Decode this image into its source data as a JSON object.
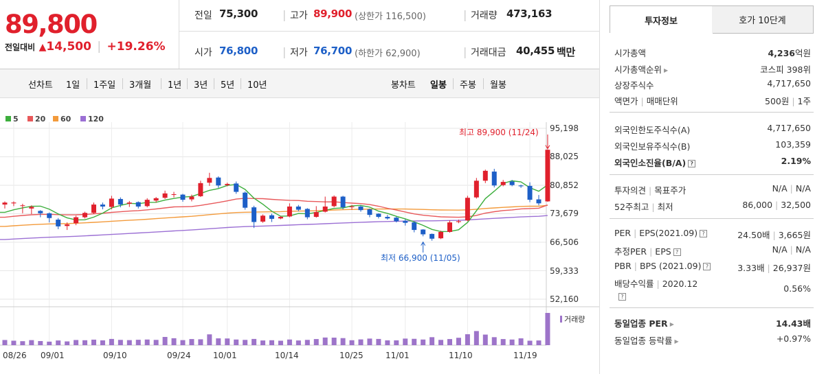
{
  "price": {
    "current": "89,800",
    "change_label": "전일대비",
    "change_value": "14,500",
    "change_pct": "+19.26%"
  },
  "summary": {
    "prev_close_label": "전일",
    "prev_close": "75,300",
    "high_label": "고가",
    "high": "89,900",
    "upper_limit_label": "(상한가 116,500)",
    "volume_label": "거래량",
    "volume": "473,163",
    "open_label": "시가",
    "open": "76,800",
    "low_label": "저가",
    "low": "76,700",
    "lower_limit_label": "(하한가 62,900)",
    "amount_label": "거래대금",
    "amount": "40,455",
    "amount_unit": "백만"
  },
  "toolbar": {
    "line_chart_label": "선차트",
    "periods": [
      "1일",
      "1주일",
      "3개월",
      "1년",
      "3년",
      "5년",
      "10년"
    ],
    "candle_chart_label": "봉차트",
    "candle_periods": [
      "일봉",
      "주봉",
      "월봉"
    ]
  },
  "legend": [
    {
      "label": "5",
      "color": "#3cae3c"
    },
    {
      "label": "20",
      "color": "#e8585a"
    },
    {
      "label": "60",
      "color": "#f39a3a"
    },
    {
      "label": "120",
      "color": "#9b6fd4"
    }
  ],
  "colors": {
    "up": "#e0202c",
    "down": "#1d5fc7",
    "volume": "#9d74c9"
  },
  "chart_data": {
    "type": "candlestick",
    "y_ticks": [
      "95,198",
      "88,025",
      "80,852",
      "73,679",
      "66,506",
      "59,333",
      "52,160"
    ],
    "ylim": [
      52160,
      95198
    ],
    "x_labels": [
      "08/26",
      "09/01",
      "09/10",
      "09/24",
      "10/01",
      "10/14",
      "10/25",
      "11/01",
      "11/10",
      "11/19"
    ],
    "x_label_index": [
      1,
      5,
      12,
      20,
      25,
      32,
      39,
      45,
      52,
      59
    ],
    "annotation_high": "최고 89,900 (11/24)",
    "annotation_low": "최저 66,900 (11/05)",
    "volume_label": "거래량",
    "candles": [
      [
        76000,
        76500,
        75000,
        76800
      ],
      [
        76300,
        76500,
        75600,
        76800
      ],
      [
        75800,
        75800,
        73800,
        76200
      ],
      [
        75000,
        75400,
        73600,
        75800
      ],
      [
        74400,
        73800,
        72800,
        74600
      ],
      [
        73800,
        72600,
        71500,
        74000
      ],
      [
        72200,
        70500,
        69800,
        72600
      ],
      [
        70600,
        71000,
        69600,
        71500
      ],
      [
        71300,
        72800,
        70800,
        73200
      ],
      [
        72800,
        73900,
        72500,
        74200
      ],
      [
        73900,
        76000,
        73600,
        76500
      ],
      [
        76000,
        75500,
        74800,
        76500
      ],
      [
        75400,
        77500,
        74800,
        78200
      ],
      [
        77400,
        76000,
        75300,
        77800
      ],
      [
        76200,
        76500,
        75400,
        76900
      ],
      [
        76600,
        75500,
        75000,
        76800
      ],
      [
        75600,
        77200,
        75300,
        77600
      ],
      [
        77000,
        77600,
        76500,
        77900
      ],
      [
        77700,
        78800,
        77400,
        79500
      ],
      [
        78600,
        78600,
        77800,
        79200
      ],
      [
        78500,
        77200,
        76700,
        78700
      ],
      [
        77300,
        78000,
        76800,
        78500
      ],
      [
        78100,
        81400,
        77900,
        82000
      ],
      [
        81500,
        82700,
        80700,
        84000
      ],
      [
        82800,
        80800,
        80200,
        83100
      ],
      [
        80900,
        81200,
        80600,
        81500
      ],
      [
        81300,
        79200,
        78700,
        81800
      ],
      [
        79000,
        75200,
        74700,
        79300
      ],
      [
        75300,
        71600,
        70100,
        75700
      ],
      [
        71700,
        73200,
        71400,
        73500
      ],
      [
        73300,
        72400,
        71600,
        73700
      ],
      [
        72500,
        72900,
        72300,
        73100
      ],
      [
        73000,
        75500,
        72800,
        76300
      ],
      [
        75500,
        74700,
        74300,
        75900
      ],
      [
        74900,
        72800,
        72300,
        75100
      ],
      [
        72900,
        74100,
        72700,
        75600
      ],
      [
        74200,
        75500,
        74000,
        78000
      ],
      [
        75600,
        78000,
        75300,
        78300
      ],
      [
        78000,
        75300,
        74800,
        78200
      ],
      [
        75400,
        75500,
        74700,
        75900
      ],
      [
        75500,
        74600,
        74200,
        75800
      ],
      [
        74800,
        73400,
        72800,
        75000
      ],
      [
        73700,
        72900,
        72500,
        73800
      ],
      [
        72900,
        72500,
        72200,
        73400
      ],
      [
        72700,
        71800,
        71500,
        73000
      ],
      [
        71900,
        71400,
        70700,
        72300
      ],
      [
        71500,
        69600,
        69000,
        71700
      ],
      [
        69700,
        68500,
        68000,
        69800
      ],
      [
        68600,
        67400,
        66900,
        68700
      ],
      [
        67500,
        69100,
        67300,
        69400
      ],
      [
        69100,
        71500,
        68900,
        72000
      ],
      [
        71600,
        71800,
        71300,
        72200
      ],
      [
        72000,
        77700,
        71800,
        78200
      ],
      [
        77800,
        82000,
        77500,
        82700
      ],
      [
        82000,
        84500,
        81400,
        84800
      ],
      [
        84300,
        80800,
        80300,
        85000
      ],
      [
        80900,
        81700,
        80600,
        82200
      ],
      [
        81800,
        80900,
        80600,
        82200
      ],
      [
        80800,
        80600,
        80200,
        81000
      ],
      [
        80700,
        77200,
        76600,
        81600
      ],
      [
        77300,
        76300,
        75800,
        78400
      ],
      [
        76800,
        89800,
        76700,
        89900
      ]
    ],
    "volumes": [
      44,
      38,
      34,
      43,
      35,
      30,
      40,
      32,
      44,
      42,
      47,
      41,
      53,
      45,
      43,
      46,
      48,
      45,
      70,
      59,
      43,
      52,
      50,
      92,
      58,
      57,
      48,
      45,
      53,
      40,
      42,
      38,
      48,
      40,
      45,
      52,
      65,
      64,
      60,
      42,
      49,
      56,
      53,
      41,
      41,
      56,
      54,
      48,
      68,
      45,
      52,
      63,
      93,
      120,
      90,
      68,
      52,
      48,
      58,
      38,
      40,
      274
    ]
  },
  "tabs": {
    "invest_info": "투자정보",
    "order_book": "호가 10단계"
  },
  "info": {
    "market_cap_label": "시가총액",
    "market_cap_value": "4,236",
    "market_cap_unit": "억원",
    "rank_label": "시가총액순위",
    "rank_value": "코스피 398위",
    "shares_label": "상장주식수",
    "shares_value": "4,717,650",
    "par_label": "액면가",
    "unit_label": "매매단위",
    "par_value": "500원",
    "unit_value": "1주",
    "foreign_limit_label": "외국인한도주식수(A)",
    "foreign_limit_value": "4,717,650",
    "foreign_hold_label": "외국인보유주식수(B)",
    "foreign_hold_value": "103,359",
    "foreign_ratio_label": "외국인소진율(B/A)",
    "foreign_ratio_value": "2.19%",
    "opinion_label": "투자의견",
    "target_label": "목표주가",
    "opinion_value": "N/A",
    "target_value": "N/A",
    "w52_high_label": "52주최고",
    "w52_low_label": "최저",
    "w52_high": "86,000",
    "w52_low": "32,500",
    "per_label": "PER",
    "eps_label": "EPS(2021.09)",
    "per_value": "24.50배",
    "eps_value": "3,665원",
    "est_per_label": "추정PER",
    "est_eps_label": "EPS",
    "est_per_value": "N/A",
    "est_eps_value": "N/A",
    "pbr_label": "PBR",
    "bps_label": "BPS (2021.09)",
    "pbr_value": "3.33배",
    "bps_value": "26,937원",
    "div_label": "배당수익률",
    "div_year": "2020.12",
    "div_value": "0.56%",
    "ind_per_label": "동일업종 PER",
    "ind_per_value": "14.43배",
    "ind_change_label": "동일업종 등락률",
    "ind_change_value": "+0.97%"
  }
}
